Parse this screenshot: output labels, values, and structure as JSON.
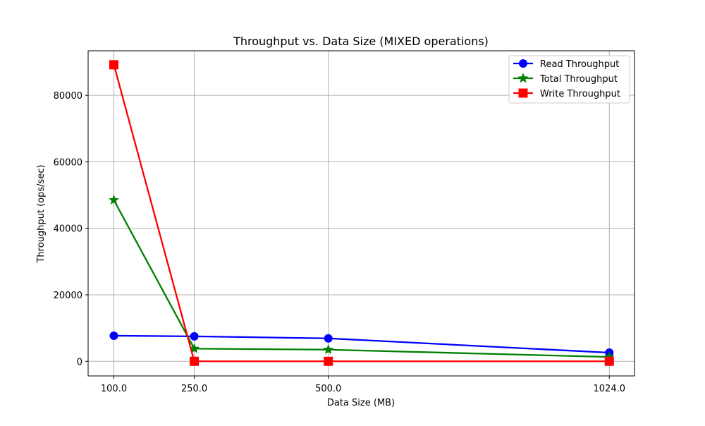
{
  "chart_data": {
    "type": "line",
    "title": "Throughput vs. Data Size (MIXED operations)",
    "xlabel": "Data Size (MB)",
    "ylabel": "Throughput (ops/sec)",
    "x": [
      100.0,
      250.0,
      500.0,
      1024.0
    ],
    "x_tick_labels": [
      "100.0",
      "250.0",
      "500.0",
      "1024.0"
    ],
    "y_ticks": [
      0,
      20000,
      40000,
      60000,
      80000
    ],
    "y_tick_labels": [
      "0",
      "20000",
      "40000",
      "60000",
      "80000"
    ],
    "xlim": [
      52,
      1071
    ],
    "ylim": [
      -4400,
      93400
    ],
    "grid": true,
    "legend_position": "top-right",
    "series": [
      {
        "name": "Read Throughput",
        "color": "#0000ff",
        "marker": "circle",
        "values": [
          7700,
          7500,
          6900,
          2600
        ]
      },
      {
        "name": "Total Throughput",
        "color": "#008000",
        "marker": "star",
        "values": [
          48500,
          3800,
          3500,
          1300
        ]
      },
      {
        "name": "Write Throughput",
        "color": "#ff0000",
        "marker": "square",
        "values": [
          89200,
          0,
          0,
          0
        ]
      }
    ]
  }
}
